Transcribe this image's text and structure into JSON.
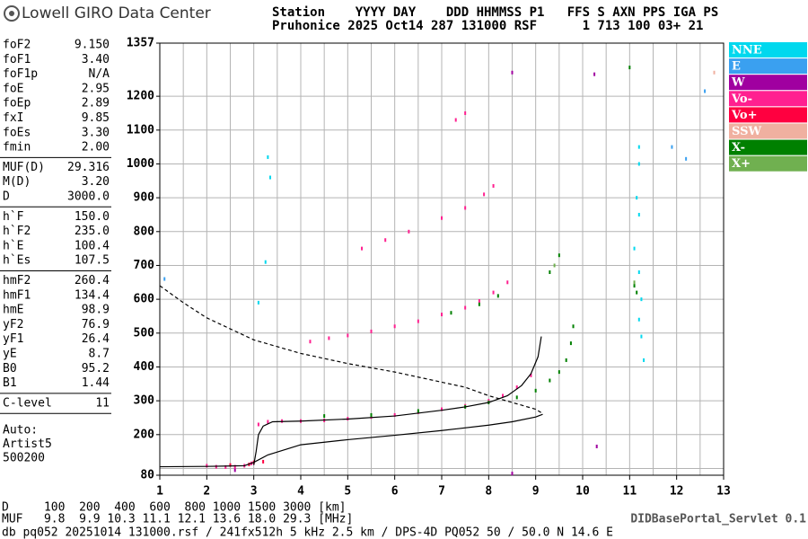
{
  "header": {
    "logo": "Lowell GIRO Data Center",
    "line1": "Station    YYYY DAY    DDD HHMMSS P1   FFS S AXN PPS IGA PS",
    "line2": "Pruhonice 2025 Oct14 287 131000 RSF      1 713 100 03+ 21"
  },
  "parameters": [
    [
      [
        "foF2",
        "9.150"
      ],
      [
        "foF1",
        "3.40"
      ],
      [
        "foF1p",
        "N/A"
      ],
      [
        "foE",
        "2.95"
      ],
      [
        "foEp",
        "2.89"
      ],
      [
        "fxI",
        "9.85"
      ],
      [
        "foEs",
        "3.30"
      ],
      [
        "fmin",
        "2.00"
      ]
    ],
    [
      [
        "MUF(D)",
        "29.316"
      ],
      [
        "M(D)",
        "3.20"
      ],
      [
        "D",
        "3000.0"
      ]
    ],
    [
      [
        "h`F",
        "150.0"
      ],
      [
        "h`F2",
        "235.0"
      ],
      [
        "h`E",
        "100.4"
      ],
      [
        "h`Es",
        "107.5"
      ]
    ],
    [
      [
        "hmF2",
        "260.4"
      ],
      [
        "hmF1",
        "134.4"
      ],
      [
        "hmE",
        "98.9"
      ],
      [
        "yF2",
        "76.9"
      ],
      [
        "yF1",
        "26.4"
      ],
      [
        "yE",
        "8.7"
      ],
      [
        "B0",
        "95.2"
      ],
      [
        "B1",
        "1.44"
      ]
    ],
    [
      [
        "C-level",
        "11"
      ]
    ]
  ],
  "autoscaling": [
    "Auto:",
    "Artist5",
    "500200"
  ],
  "footer": {
    "d_row": "D     100  200  400  600  800 1000 1500 3000 [km]",
    "muf_row": "MUF   9.8  9.9 10.3 11.1 12.1 13.6 18.0 29.3 [MHz]",
    "portal": "DIDBasePortal_Servlet 0.1",
    "file": "db pq052 20251014 131000.rsf / 241fx512h 5 kHz 2.5 km / DPS-4D PQ052 50 / 50.0 N 14.6 E"
  },
  "chart_data": {
    "type": "scatter",
    "xlim": [
      1,
      13
    ],
    "xticks": [
      1,
      2,
      3,
      4,
      5,
      6,
      7,
      8,
      9,
      10,
      11,
      12,
      13
    ],
    "x_minor_ticks": [
      1.5,
      2.5,
      3.5,
      4.5,
      5.5,
      6.5,
      7.5,
      8.5,
      9.5,
      10.5,
      11.5,
      12.5
    ],
    "ylim": [
      80,
      1357
    ],
    "yticks": [
      80,
      200,
      300,
      400,
      500,
      600,
      700,
      800,
      900,
      1000,
      1100,
      1200,
      1357
    ],
    "y_minor_ticks": [
      100
    ],
    "grid": true,
    "series": [
      {
        "name": "NNE",
        "color": "#00d8ee",
        "x": [
          11.2,
          11.2,
          11.15,
          11.2,
          11.1,
          11.2,
          11.25,
          11.2,
          11.25,
          11.3,
          3.1,
          3.25,
          3.3,
          3.35
        ],
        "y": [
          1050,
          1000,
          900,
          850,
          750,
          680,
          600,
          540,
          490,
          420,
          590,
          710,
          1020,
          960
        ]
      },
      {
        "name": "E",
        "color": "#3aa0f0",
        "x": [
          12.2,
          12.6,
          11.9,
          1.1
        ],
        "y": [
          1015,
          1215,
          1050,
          660
        ]
      },
      {
        "name": "W",
        "color": "#a000a0",
        "x": [
          2.6,
          8.5,
          10.25,
          10.3,
          8.5
        ],
        "y": [
          95,
          1270,
          1265,
          165,
          85
        ]
      },
      {
        "name": "Vo-",
        "color": "#ff2090",
        "x": [
          2.0,
          2.2,
          2.4,
          2.6,
          2.8,
          2.95,
          3.1,
          3.3,
          3.6,
          4.0,
          4.5,
          5.0,
          5.5,
          6.0,
          6.5,
          7.0,
          7.5,
          8.0,
          8.3,
          8.6,
          8.9,
          4.2,
          4.6,
          5.0,
          5.5,
          6.0,
          6.5,
          7.0,
          7.5,
          7.8,
          8.1,
          8.4,
          5.3,
          5.8,
          6.3,
          7.0,
          7.5,
          7.9,
          8.1,
          7.3,
          7.5
        ],
        "y": [
          108,
          105,
          104,
          105,
          108,
          115,
          230,
          238,
          240,
          240,
          242,
          247,
          252,
          258,
          266,
          275,
          285,
          300,
          315,
          340,
          375,
          475,
          485,
          493,
          505,
          520,
          535,
          555,
          575,
          595,
          620,
          650,
          750,
          775,
          800,
          840,
          870,
          910,
          935,
          1130,
          1150
        ]
      },
      {
        "name": "Vo+",
        "color": "#ff0040",
        "x": [
          2.5,
          2.9,
          3.0,
          3.2
        ],
        "y": [
          110,
          112,
          118,
          120
        ]
      },
      {
        "name": "SSW",
        "color": "#f0b0a0",
        "x": [
          12.8
        ],
        "y": [
          1270
        ]
      },
      {
        "name": "X-",
        "color": "#008000",
        "x": [
          4.5,
          5.5,
          6.5,
          7.5,
          8.0,
          8.6,
          9.0,
          9.3,
          9.5,
          9.65,
          9.75,
          9.8,
          9.3,
          9.5,
          7.2,
          7.8,
          8.2,
          11.1,
          11.15,
          11.0
        ],
        "y": [
          255,
          258,
          270,
          282,
          295,
          310,
          330,
          360,
          385,
          420,
          470,
          520,
          680,
          730,
          560,
          585,
          610,
          640,
          620,
          1285
        ]
      },
      {
        "name": "X+",
        "color": "#70b050",
        "x": [
          11.1,
          9.4
        ],
        "y": [
          650,
          700
        ]
      }
    ],
    "profile": {
      "x": [
        1.0,
        1.5,
        2.0,
        3.0,
        4.0,
        5.0,
        6.0,
        7.0,
        7.5,
        8.0,
        8.5,
        9.0,
        9.15
      ],
      "y": [
        640,
        590,
        545,
        480,
        440,
        410,
        385,
        355,
        340,
        315,
        295,
        275,
        262
      ]
    },
    "true_height": {
      "x": [
        1.0,
        2.0,
        2.8,
        3.0,
        3.3,
        4.0,
        5.0,
        6.0,
        7.0,
        8.0,
        8.5,
        9.0,
        9.15
      ],
      "y": [
        105,
        106,
        108,
        118,
        140,
        170,
        185,
        198,
        212,
        228,
        238,
        252,
        260
      ]
    },
    "virtual_height": {
      "x": [
        3.0,
        3.05,
        3.1,
        3.2,
        3.4,
        4.0,
        5.0,
        6.0,
        7.0,
        7.5,
        8.0,
        8.4,
        8.7,
        8.9,
        9.05,
        9.12
      ],
      "y": [
        110,
        150,
        200,
        225,
        238,
        240,
        246,
        255,
        272,
        282,
        295,
        315,
        345,
        380,
        430,
        490
      ]
    }
  }
}
